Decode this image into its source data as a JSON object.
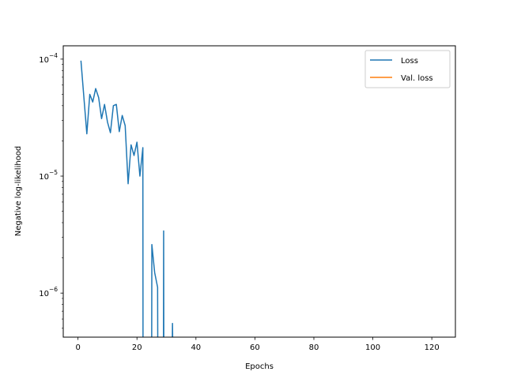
{
  "chart_data": {
    "type": "line",
    "title": "",
    "xlabel": "Epochs",
    "ylabel": "Negative log-likelihood",
    "yscale": "log",
    "xlim": [
      -5,
      128
    ],
    "ylim": [
      4.2e-07,
      0.00013
    ],
    "x_ticks": [
      0,
      20,
      40,
      60,
      80,
      100,
      120
    ],
    "y_ticks": [
      {
        "value": 1e-06,
        "mantissa": "10",
        "exponent": "−6"
      },
      {
        "value": 1e-05,
        "mantissa": "10",
        "exponent": "−5"
      },
      {
        "value": 0.0001,
        "mantissa": "10",
        "exponent": "−4"
      }
    ],
    "legend_position": "top-right",
    "series": [
      {
        "name": "Loss",
        "color": "#1f77b4",
        "points": [
          [
            1,
            9.7e-05
          ],
          [
            2,
            4.7e-05
          ],
          [
            3,
            2.3e-05
          ],
          [
            4,
            5e-05
          ],
          [
            5,
            4.3e-05
          ],
          [
            6,
            5.6e-05
          ],
          [
            7,
            4.7e-05
          ],
          [
            8,
            3.1e-05
          ],
          [
            9,
            4.1e-05
          ],
          [
            10,
            2.9e-05
          ],
          [
            11,
            2.35e-05
          ],
          [
            12,
            4e-05
          ],
          [
            13,
            4.1e-05
          ],
          [
            14,
            2.4e-05
          ],
          [
            15,
            3.3e-05
          ],
          [
            16,
            2.7e-05
          ],
          [
            17,
            8.6e-06
          ],
          [
            18,
            1.85e-05
          ],
          [
            19,
            1.5e-05
          ],
          [
            20,
            1.95e-05
          ],
          [
            21,
            1e-05
          ],
          [
            22,
            1.75e-05
          ],
          [
            22.05,
            4.2e-07
          ],
          null,
          [
            25,
            4.2e-07
          ],
          [
            25.05,
            2.6e-06
          ],
          [
            26,
            1.5e-06
          ],
          [
            27,
            1.12e-06
          ],
          [
            27.05,
            4.2e-07
          ],
          null,
          [
            29,
            4.2e-07
          ],
          [
            29.05,
            3.4e-06
          ],
          [
            29.1,
            4.2e-07
          ],
          null,
          [
            32,
            4.2e-07
          ],
          [
            32.05,
            5.5e-07
          ],
          [
            32.1,
            4.2e-07
          ]
        ]
      },
      {
        "name": "Val. loss",
        "color": "#ff7f0e",
        "points": []
      }
    ]
  }
}
